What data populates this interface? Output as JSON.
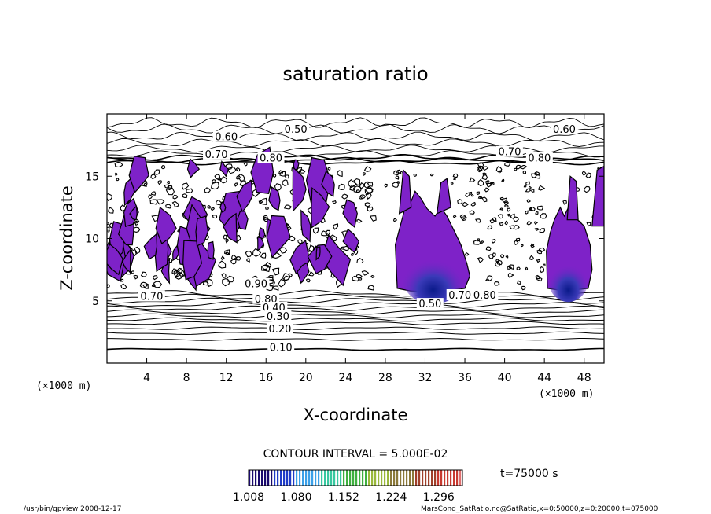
{
  "chart_data": {
    "type": "heatmap",
    "title": "saturation ratio",
    "xlabel": "X-coordinate",
    "ylabel": "Z-coordinate",
    "x_unit_left": "(×1000 m)",
    "x_unit_right": "(×1000 m)",
    "xlim": [
      0,
      50
    ],
    "ylim": [
      0,
      20
    ],
    "x_ticks": [
      "4",
      "8",
      "12",
      "16",
      "20",
      "24",
      "28",
      "32",
      "36",
      "40",
      "44",
      "48"
    ],
    "x_tick_values": [
      4,
      8,
      12,
      16,
      20,
      24,
      28,
      32,
      36,
      40,
      44,
      48
    ],
    "y_ticks": [
      "5",
      "10",
      "15"
    ],
    "y_tick_values": [
      5,
      10,
      15
    ],
    "contour_labels": [
      {
        "text": "0.50",
        "x": 19,
        "z": 18.6
      },
      {
        "text": "0.60",
        "x": 12,
        "z": 18.0
      },
      {
        "text": "0.60",
        "x": 46,
        "z": 18.6
      },
      {
        "text": "0.70",
        "x": 11,
        "z": 16.6
      },
      {
        "text": "0.70",
        "x": 40.5,
        "z": 16.8
      },
      {
        "text": "0.80",
        "x": 16.5,
        "z": 16.3
      },
      {
        "text": "0.80",
        "x": 43.5,
        "z": 16.3
      },
      {
        "text": "0.90",
        "x": 15,
        "z": 6.2
      },
      {
        "text": "0.80",
        "x": 16,
        "z": 5.0
      },
      {
        "text": "0.70",
        "x": 4.5,
        "z": 5.2
      },
      {
        "text": "0.40",
        "x": 16.8,
        "z": 4.3
      },
      {
        "text": "0.30",
        "x": 17.2,
        "z": 3.6
      },
      {
        "text": "0.20",
        "x": 17.4,
        "z": 2.6
      },
      {
        "text": "0.10",
        "x": 17.5,
        "z": 1.1
      },
      {
        "text": "0.50",
        "x": 32.5,
        "z": 4.6
      },
      {
        "text": "0.70",
        "x": 35.5,
        "z": 5.3
      },
      {
        "text": "0.80",
        "x": 38,
        "z": 5.3
      }
    ],
    "contour_interval": "CONTOUR INTERVAL = 5.000E-02",
    "colorbar": {
      "ticks": [
        "1.008",
        "1.080",
        "1.152",
        "1.224",
        "1.296"
      ],
      "min": 1.008,
      "max": 1.332,
      "colors": [
        "#1a0a6e",
        "#1f3cc8",
        "#3aa0e8",
        "#38c8a0",
        "#3fb040",
        "#9ab83c",
        "#8c7a3a",
        "#a0402a",
        "#c83a30",
        "#e07070"
      ]
    },
    "time_label": "t=75000 s",
    "cloud_color": "#7e22c8",
    "core_color": "#1a2a9a"
  },
  "footer": {
    "left": "/usr/bin/gpview  2008-12-17",
    "right": "MarsCond_SatRatio.nc@SatRatio,x=0:50000,z=0:20000,t=075000"
  }
}
